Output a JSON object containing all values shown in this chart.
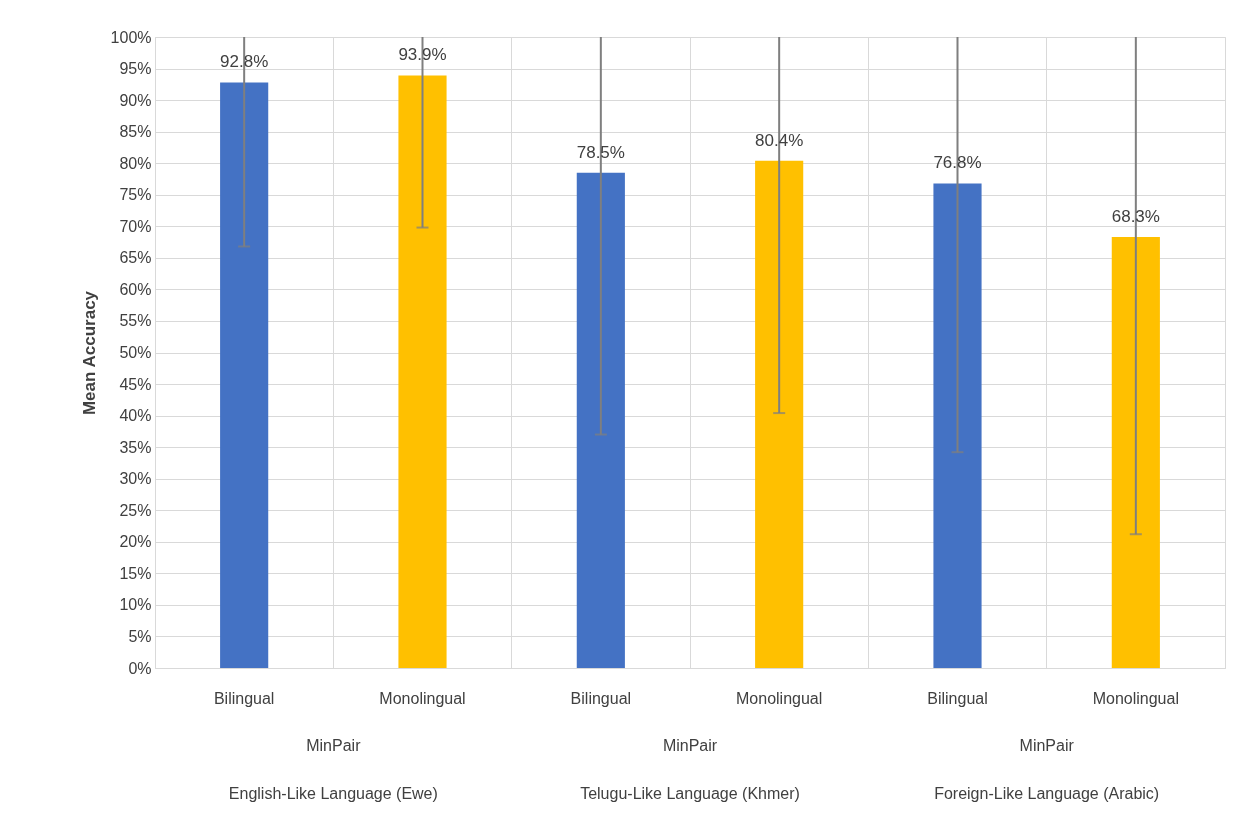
{
  "chart_data": {
    "type": "bar",
    "ylabel": "Mean Accuracy",
    "categories": [
      "Bilingual",
      "Monolingual",
      "Bilingual",
      "Monolingual",
      "Bilingual",
      "Monolingual"
    ],
    "values": [
      92.8,
      93.9,
      78.5,
      80.4,
      76.8,
      68.3
    ],
    "colors": [
      "#4472c4",
      "#ffc000",
      "#4472c4",
      "#ffc000",
      "#4472c4",
      "#ffc000"
    ],
    "value_labels": [
      "92.8%",
      "93.9%",
      "78.5%",
      "80.4%",
      "76.8%",
      "68.3%"
    ],
    "errors": [
      [
        66.8,
        100
      ],
      [
        69.8,
        100
      ],
      [
        37.0,
        100
      ],
      [
        40.4,
        100
      ],
      [
        34.2,
        100
      ],
      [
        21.2,
        100
      ]
    ],
    "ylim": [
      0,
      100
    ],
    "yticks": [
      {
        "value": 0,
        "label": "0%"
      },
      {
        "value": 5,
        "label": "5%"
      },
      {
        "value": 10,
        "label": "10%"
      },
      {
        "value": 15,
        "label": "15%"
      },
      {
        "value": 20,
        "label": "20%"
      },
      {
        "value": 25,
        "label": "25%"
      },
      {
        "value": 30,
        "label": "30%"
      },
      {
        "value": 35,
        "label": "35%"
      },
      {
        "value": 40,
        "label": "40%"
      },
      {
        "value": 45,
        "label": "45%"
      },
      {
        "value": 50,
        "label": "50%"
      },
      {
        "value": 55,
        "label": "55%"
      },
      {
        "value": 60,
        "label": "60%"
      },
      {
        "value": 65,
        "label": "65%"
      },
      {
        "value": 70,
        "label": "70%"
      },
      {
        "value": 75,
        "label": "75%"
      },
      {
        "value": 80,
        "label": "80%"
      },
      {
        "value": 85,
        "label": "85%"
      },
      {
        "value": 90,
        "label": "90%"
      },
      {
        "value": 95,
        "label": "95%"
      },
      {
        "value": 100,
        "label": "100%"
      }
    ],
    "annotations": [
      "MinPair",
      "MinPair",
      "MinPair",
      "English-Like Language (Ewe)",
      "Telugu-Like Language (Khmer)",
      "Foreign-Like Language (Arabic)"
    ],
    "grid": true
  }
}
